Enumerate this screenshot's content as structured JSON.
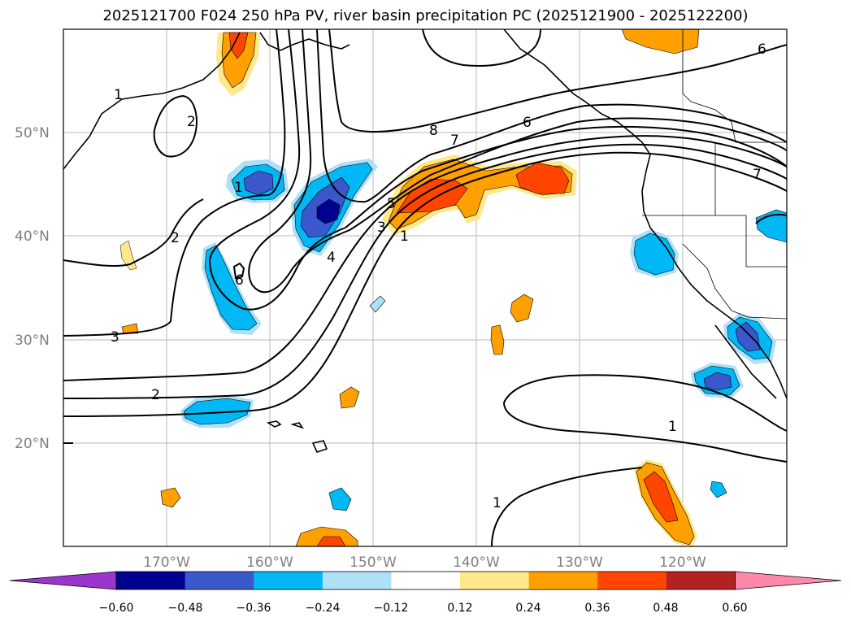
{
  "title": "2025121700 F024 250 hPa PV, river basin precipitation PC (2025121900 - 2025122200)",
  "map": {
    "lon_range": [
      -180,
      -110
    ],
    "lat_range": [
      10,
      60
    ],
    "lat_labels": [
      {
        "value": 50,
        "text": "50°N"
      },
      {
        "value": 40,
        "text": "40°N"
      },
      {
        "value": 30,
        "text": "30°N"
      },
      {
        "value": 20,
        "text": "20°N"
      }
    ],
    "lon_labels": [
      {
        "value": -170,
        "text": "170°W"
      },
      {
        "value": -160,
        "text": "160°W"
      },
      {
        "value": -150,
        "text": "150°W"
      },
      {
        "value": -140,
        "text": "140°W"
      },
      {
        "value": -130,
        "text": "130°W"
      },
      {
        "value": -120,
        "text": "120°W"
      }
    ],
    "contour_labels": [
      "1",
      "2",
      "1",
      "3",
      "2",
      "2",
      "6",
      "4",
      "3",
      "5",
      "1",
      "8",
      "7",
      "6",
      "7",
      "6",
      "1",
      "1"
    ]
  },
  "colorbar": {
    "ticks": [
      "−0.60",
      "−0.48",
      "−0.36",
      "−0.24",
      "−0.12",
      "0.12",
      "0.24",
      "0.36",
      "0.48",
      "0.60"
    ],
    "colors": [
      "#9a36cc",
      "#000090",
      "#3a58cc",
      "#00b8f5",
      "#aee0f8",
      "#ffffff",
      "#ffe88a",
      "#ffa000",
      "#ff4500",
      "#b22222",
      "#ff88aa"
    ]
  }
}
